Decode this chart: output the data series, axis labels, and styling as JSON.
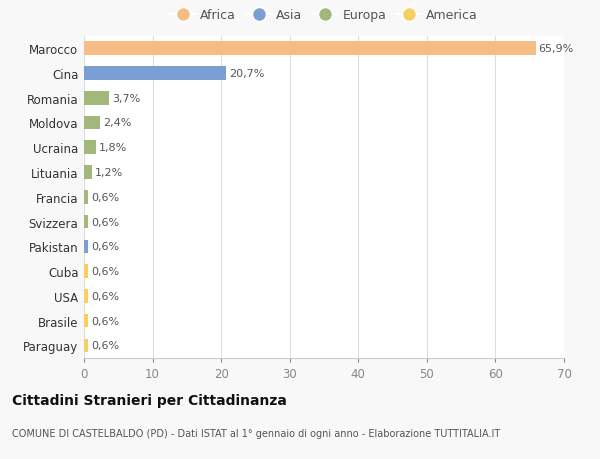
{
  "countries": [
    "Marocco",
    "Cina",
    "Romania",
    "Moldova",
    "Ucraina",
    "Lituania",
    "Francia",
    "Svizzera",
    "Pakistan",
    "Cuba",
    "USA",
    "Brasile",
    "Paraguay"
  ],
  "values": [
    65.9,
    20.7,
    3.7,
    2.4,
    1.8,
    1.2,
    0.6,
    0.6,
    0.6,
    0.6,
    0.6,
    0.6,
    0.6
  ],
  "labels": [
    "65,9%",
    "20,7%",
    "3,7%",
    "2,4%",
    "1,8%",
    "1,2%",
    "0,6%",
    "0,6%",
    "0,6%",
    "0,6%",
    "0,6%",
    "0,6%",
    "0,6%"
  ],
  "continents": [
    "Africa",
    "Asia",
    "Europa",
    "Europa",
    "Europa",
    "Europa",
    "Europa",
    "Europa",
    "Asia",
    "America",
    "America",
    "America",
    "America"
  ],
  "colors": {
    "Africa": "#F5BC85",
    "Asia": "#7B9FD4",
    "Europa": "#A2B87A",
    "America": "#F5D060"
  },
  "legend_order": [
    "Africa",
    "Asia",
    "Europa",
    "America"
  ],
  "title": "Cittadini Stranieri per Cittadinanza",
  "subtitle": "COMUNE DI CASTELBALDO (PD) - Dati ISTAT al 1° gennaio di ogni anno - Elaborazione TUTTITALIA.IT",
  "xlim": [
    0,
    70
  ],
  "xticks": [
    0,
    10,
    20,
    30,
    40,
    50,
    60,
    70
  ],
  "bg_color": "#f8f8f8",
  "plot_bg_color": "#ffffff"
}
